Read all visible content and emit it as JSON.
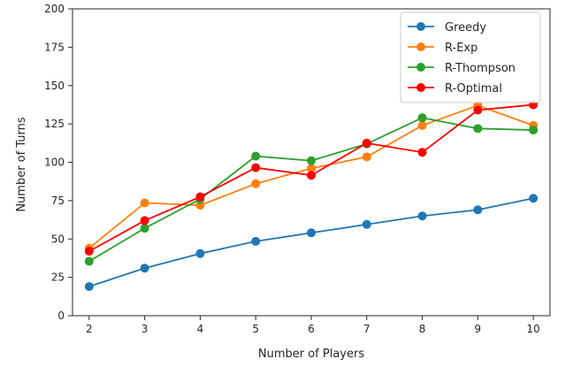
{
  "chart_data": {
    "type": "line",
    "title": "",
    "xlabel": "Number of Players",
    "ylabel": "Number of Turns",
    "x": [
      2,
      3,
      4,
      5,
      6,
      7,
      8,
      9,
      10
    ],
    "x_ticks": [
      2,
      3,
      4,
      5,
      6,
      7,
      8,
      9,
      10
    ],
    "y_ticks": [
      0,
      25,
      50,
      75,
      100,
      125,
      150,
      175,
      200
    ],
    "xlim": [
      1.7,
      10.3
    ],
    "ylim": [
      0,
      200
    ],
    "grid": false,
    "legend_position": "top-right",
    "series": [
      {
        "name": "Greedy",
        "color": "#1f77b4",
        "values": [
          19,
          31,
          40.5,
          48.5,
          54,
          59.5,
          65,
          69,
          76.5
        ]
      },
      {
        "name": "R-Exp",
        "color": "#ff7f0e",
        "values": [
          44,
          73.5,
          72,
          86,
          96,
          103.5,
          124,
          137,
          124
        ]
      },
      {
        "name": "R-Thompson",
        "color": "#2ca02c",
        "values": [
          35.5,
          57,
          76,
          104,
          101,
          112,
          129,
          122,
          121
        ]
      },
      {
        "name": "R-Optimal",
        "color": "#ff0000",
        "values": [
          42,
          62,
          77.5,
          96.5,
          91.5,
          112.5,
          106.5,
          134,
          137.5
        ]
      }
    ]
  }
}
